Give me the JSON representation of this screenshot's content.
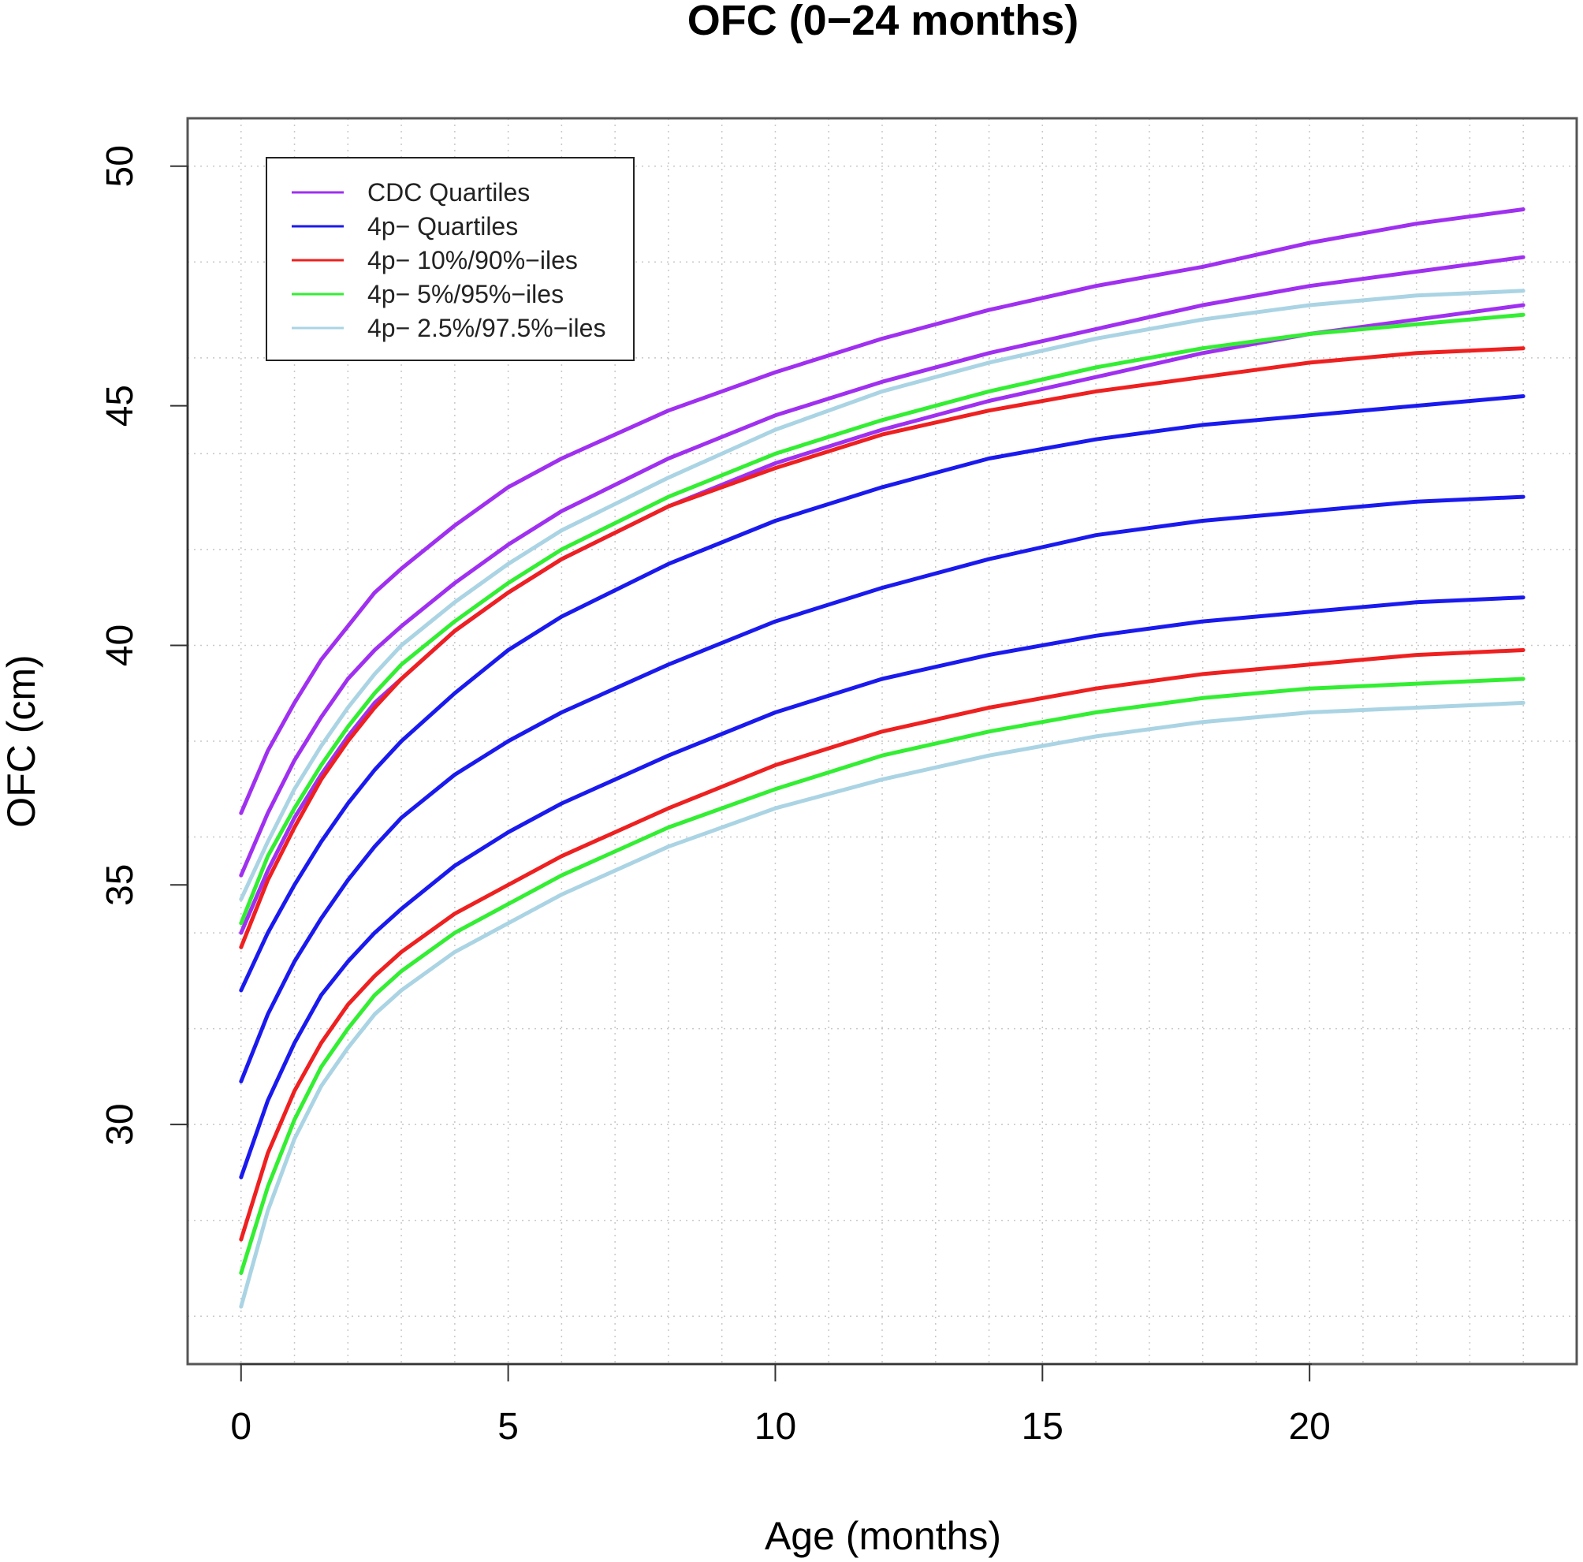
{
  "chart_data": {
    "type": "line",
    "title": "OFC (0−24 months)",
    "xlabel": "Age (months)",
    "ylabel": "OFC (cm)",
    "xlim": [
      -1,
      25
    ],
    "ylim": [
      25,
      51
    ],
    "x_ticks": [
      0,
      5,
      10,
      15,
      20
    ],
    "y_ticks": [
      30,
      35,
      40,
      45,
      50
    ],
    "grid": true,
    "legend_placement": "top-left",
    "legend": [
      {
        "label": "CDC Quartiles",
        "color": "#a030f0"
      },
      {
        "label": "4p− Quartiles",
        "color": "#1a1aee"
      },
      {
        "label": "4p− 10%/90%−iles",
        "color": "#ee2020"
      },
      {
        "label": "4p− 5%/95%−iles",
        "color": "#33ee33"
      },
      {
        "label": "4p− 2.5%/97.5%−iles",
        "color": "#aad4e4"
      }
    ],
    "x": [
      0,
      0.5,
      1,
      1.5,
      2,
      2.5,
      3,
      4,
      5,
      6,
      8,
      10,
      12,
      14,
      16,
      18,
      20,
      22,
      24
    ],
    "series": [
      {
        "group": "CDC Quartiles",
        "color": "#a030f0",
        "values": [
          36.5,
          37.8,
          38.8,
          39.7,
          40.4,
          41.1,
          41.6,
          42.5,
          43.3,
          43.9,
          44.9,
          45.7,
          46.4,
          47.0,
          47.5,
          47.9,
          48.4,
          48.8,
          49.1
        ]
      },
      {
        "group": "CDC Quartiles",
        "color": "#a030f0",
        "values": [
          35.2,
          36.5,
          37.6,
          38.5,
          39.3,
          39.9,
          40.4,
          41.3,
          42.1,
          42.8,
          43.9,
          44.8,
          45.5,
          46.1,
          46.6,
          47.1,
          47.5,
          47.8,
          48.1
        ]
      },
      {
        "group": "CDC Quartiles",
        "color": "#a030f0",
        "values": [
          34.0,
          35.3,
          36.4,
          37.3,
          38.1,
          38.8,
          39.3,
          40.3,
          41.1,
          41.8,
          42.9,
          43.8,
          44.5,
          45.1,
          45.6,
          46.1,
          46.5,
          46.8,
          47.1
        ]
      },
      {
        "group": "4p− Quartiles",
        "color": "#1a1aee",
        "values": [
          32.8,
          34.0,
          35.0,
          35.9,
          36.7,
          37.4,
          38.0,
          39.0,
          39.9,
          40.6,
          41.7,
          42.6,
          43.3,
          43.9,
          44.3,
          44.6,
          44.8,
          45.0,
          45.2
        ]
      },
      {
        "group": "4p− Quartiles",
        "color": "#1a1aee",
        "values": [
          30.9,
          32.3,
          33.4,
          34.3,
          35.1,
          35.8,
          36.4,
          37.3,
          38.0,
          38.6,
          39.6,
          40.5,
          41.2,
          41.8,
          42.3,
          42.6,
          42.8,
          43.0,
          43.1
        ]
      },
      {
        "group": "4p− Quartiles",
        "color": "#1a1aee",
        "values": [
          28.9,
          30.5,
          31.7,
          32.7,
          33.4,
          34.0,
          34.5,
          35.4,
          36.1,
          36.7,
          37.7,
          38.6,
          39.3,
          39.8,
          40.2,
          40.5,
          40.7,
          40.9,
          41.0
        ]
      },
      {
        "group": "4p− 10%/90%−iles",
        "color": "#ee2020",
        "values": [
          33.7,
          35.1,
          36.2,
          37.2,
          38.0,
          38.7,
          39.3,
          40.3,
          41.1,
          41.8,
          42.9,
          43.7,
          44.4,
          44.9,
          45.3,
          45.6,
          45.9,
          46.1,
          46.2
        ]
      },
      {
        "group": "4p− 10%/90%−iles",
        "color": "#ee2020",
        "values": [
          27.6,
          29.4,
          30.7,
          31.7,
          32.5,
          33.1,
          33.6,
          34.4,
          35.0,
          35.6,
          36.6,
          37.5,
          38.2,
          38.7,
          39.1,
          39.4,
          39.6,
          39.8,
          39.9
        ]
      },
      {
        "group": "4p− 5%/95%−iles",
        "color": "#33ee33",
        "values": [
          34.2,
          35.6,
          36.6,
          37.5,
          38.3,
          39.0,
          39.6,
          40.5,
          41.3,
          42.0,
          43.1,
          44.0,
          44.7,
          45.3,
          45.8,
          46.2,
          46.5,
          46.7,
          46.9
        ]
      },
      {
        "group": "4p− 5%/95%−iles",
        "color": "#33ee33",
        "values": [
          26.9,
          28.7,
          30.1,
          31.2,
          32.0,
          32.7,
          33.2,
          34.0,
          34.6,
          35.2,
          36.2,
          37.0,
          37.7,
          38.2,
          38.6,
          38.9,
          39.1,
          39.2,
          39.3
        ]
      },
      {
        "group": "4p− 2.5%/97.5%−iles",
        "color": "#aad4e4",
        "values": [
          34.7,
          35.9,
          37.0,
          37.9,
          38.7,
          39.4,
          40.0,
          40.9,
          41.7,
          42.4,
          43.5,
          44.5,
          45.3,
          45.9,
          46.4,
          46.8,
          47.1,
          47.3,
          47.4
        ]
      },
      {
        "group": "4p− 2.5%/97.5%−iles",
        "color": "#aad4e4",
        "values": [
          26.2,
          28.2,
          29.7,
          30.8,
          31.6,
          32.3,
          32.8,
          33.6,
          34.2,
          34.8,
          35.8,
          36.6,
          37.2,
          37.7,
          38.1,
          38.4,
          38.6,
          38.7,
          38.8
        ]
      }
    ]
  }
}
